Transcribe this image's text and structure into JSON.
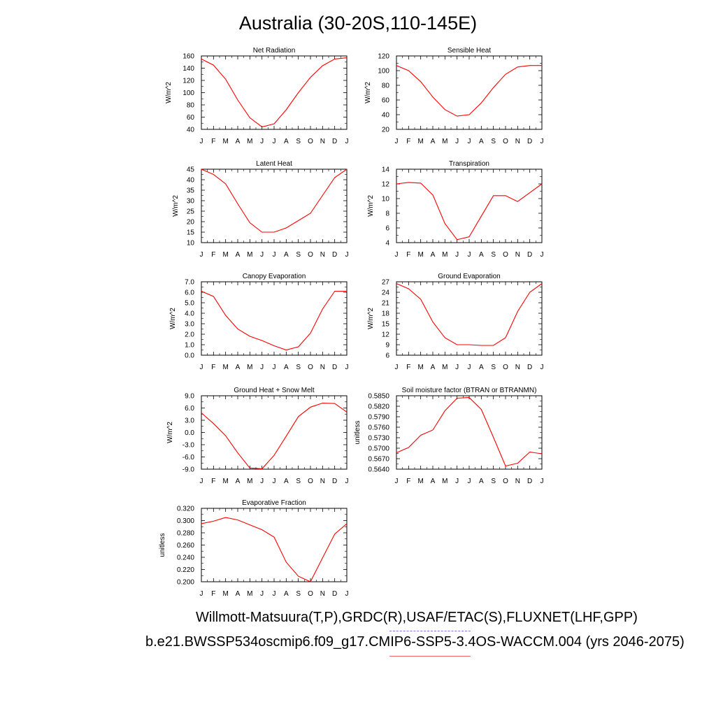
{
  "title": "Australia (30-20S,110-145E)",
  "footer": {
    "line1": "Willmott-Matsuura(T,P),GRDC(R),USAF/ETAC(S),FLUXNET(LHF,GPP)",
    "line2": "b.e21.BWSSP534oscmip6.f09_g17.CMIP6-SSP5-3.4OS-WACCM.004 (yrs 2046-2075)"
  },
  "colors": {
    "model_line": "#ff0000",
    "obs_legend": "#7777ee",
    "model_legend": "#ee6666"
  },
  "month_labels": [
    "J",
    "F",
    "M",
    "A",
    "M",
    "J",
    "J",
    "A",
    "S",
    "O",
    "N",
    "D",
    "J"
  ],
  "chart_data": [
    {
      "type": "line",
      "title": "Net Radiation",
      "ylabel": "W/m^2",
      "ylim": [
        40,
        160
      ],
      "yticks": [
        "40",
        "60",
        "80",
        "100",
        "120",
        "140",
        "160"
      ],
      "values": [
        155,
        145,
        122,
        88,
        59,
        44,
        49,
        72,
        100,
        125,
        144,
        155,
        157
      ]
    },
    {
      "type": "line",
      "title": "Sensible Heat",
      "ylabel": "W/m^2",
      "ylim": [
        20,
        120
      ],
      "yticks": [
        "20",
        "40",
        "60",
        "80",
        "100",
        "120"
      ],
      "values": [
        107,
        100,
        85,
        64,
        47,
        38,
        40,
        56,
        77,
        95,
        105,
        107,
        107
      ]
    },
    {
      "type": "line",
      "title": "Latent Heat",
      "ylabel": "W/m^2",
      "ylim": [
        10,
        45
      ],
      "yticks": [
        "10",
        "15",
        "20",
        "25",
        "30",
        "35",
        "40",
        "45"
      ],
      "values": [
        45,
        42.5,
        38,
        28.5,
        19.5,
        15,
        15,
        17,
        20.5,
        24,
        32.5,
        41,
        45
      ]
    },
    {
      "type": "line",
      "title": "Transpiration",
      "ylabel": "W/m^2",
      "ylim": [
        4,
        14
      ],
      "yticks": [
        "4",
        "6",
        "8",
        "10",
        "12",
        "14"
      ],
      "values": [
        12,
        12.2,
        12.1,
        10.5,
        6.6,
        4.4,
        4.8,
        7.6,
        10.4,
        10.4,
        9.6,
        10.8,
        12
      ]
    },
    {
      "type": "line",
      "title": "Canopy Evaporation",
      "ylabel": "W/m^2",
      "ylim": [
        0,
        7
      ],
      "yticks": [
        "0.0",
        "1.0",
        "2.0",
        "3.0",
        "4.0",
        "5.0",
        "6.0",
        "7.0"
      ],
      "values": [
        6.1,
        5.6,
        3.8,
        2.5,
        1.8,
        1.4,
        0.9,
        0.5,
        0.8,
        2.1,
        4.4,
        6.1,
        6.1
      ]
    },
    {
      "type": "line",
      "title": "Ground Evaporation",
      "ylabel": "W/m^2",
      "ylim": [
        6,
        27
      ],
      "yticks": [
        "6",
        "9",
        "12",
        "15",
        "18",
        "21",
        "24",
        "27"
      ],
      "values": [
        26.5,
        25,
        22,
        15.5,
        11,
        9,
        9,
        8.8,
        8.8,
        11,
        18.5,
        24,
        26.5
      ]
    },
    {
      "type": "line",
      "title": "Ground Heat + Snow Melt",
      "ylabel": "W/m^2",
      "ylim": [
        -9,
        9
      ],
      "yticks": [
        "-9.0",
        "-6.0",
        "-3.0",
        "0.0",
        "3.0",
        "6.0",
        "9.0"
      ],
      "values": [
        4.8,
        2.2,
        -0.8,
        -5,
        -8.7,
        -8.9,
        -5.6,
        -0.9,
        3.9,
        6.2,
        7.2,
        7.1,
        5
      ]
    },
    {
      "type": "line",
      "title": "Soil moisture factor (BTRAN or BTRANMN)",
      "ylabel": "unitless",
      "ylim": [
        0.564,
        0.585
      ],
      "yticks": [
        "0.5640",
        "0.5670",
        "0.5700",
        "0.5730",
        "0.5760",
        "0.5790",
        "0.5820",
        "0.5850"
      ],
      "values": [
        0.5687,
        0.5702,
        0.5737,
        0.5752,
        0.5807,
        0.5843,
        0.5845,
        0.5811,
        0.5731,
        0.5649,
        0.5657,
        0.5689,
        0.5684
      ]
    },
    {
      "type": "line",
      "title": "Evaporative Fraction",
      "ylabel": "unitless",
      "ylim": [
        0.2,
        0.32
      ],
      "yticks": [
        "0.200",
        "0.220",
        "0.240",
        "0.260",
        "0.280",
        "0.300",
        "0.320"
      ],
      "values": [
        0.295,
        0.299,
        0.305,
        0.301,
        0.293,
        0.285,
        0.273,
        0.232,
        0.209,
        0.2,
        0.239,
        0.278,
        0.295
      ]
    }
  ]
}
